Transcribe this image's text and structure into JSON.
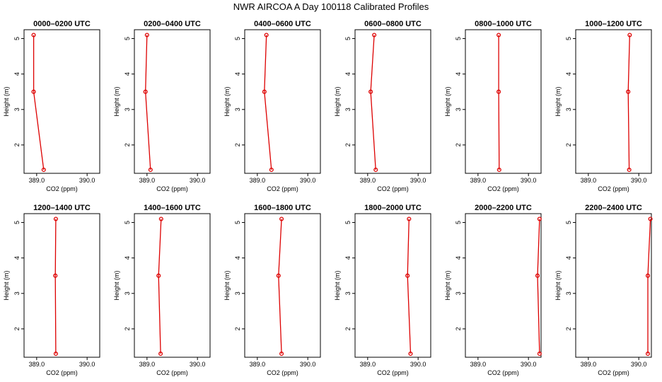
{
  "figure": {
    "title": "NWR AIRCOA A  Day 100118  Calibrated Profiles",
    "line_color": "#dd0000",
    "point_color": "#dd0000"
  },
  "chart_data": [
    {
      "type": "line",
      "title": "0000–0200 UTC",
      "xlabel": "CO2 (ppm)",
      "ylabel": "Height (m)",
      "xlim": [
        388.75,
        390.25
      ],
      "ylim": [
        1.2,
        5.25
      ],
      "xticks": [
        "389.0",
        "390.0"
      ],
      "yticks": [
        "2",
        "3",
        "4",
        "5"
      ],
      "grid": false,
      "series": [
        {
          "x": [
            389.14,
            388.94,
            388.94
          ],
          "y": [
            1.3,
            3.5,
            5.1
          ]
        }
      ]
    },
    {
      "type": "line",
      "title": "0200–0400 UTC",
      "xlabel": "CO2 (ppm)",
      "ylabel": "Height (m)",
      "xlim": [
        388.75,
        390.25
      ],
      "ylim": [
        1.2,
        5.25
      ],
      "xticks": [
        "389.0",
        "390.0"
      ],
      "yticks": [
        "2",
        "3",
        "4",
        "5"
      ],
      "grid": false,
      "series": [
        {
          "x": [
            389.07,
            388.97,
            389.0
          ],
          "y": [
            1.3,
            3.5,
            5.1
          ]
        }
      ]
    },
    {
      "type": "line",
      "title": "0400–0600 UTC",
      "xlabel": "CO2 (ppm)",
      "ylabel": "Height (m)",
      "xlim": [
        388.75,
        390.25
      ],
      "ylim": [
        1.2,
        5.25
      ],
      "xticks": [
        "389.0",
        "390.0"
      ],
      "yticks": [
        "2",
        "3",
        "4",
        "5"
      ],
      "grid": false,
      "series": [
        {
          "x": [
            389.28,
            389.14,
            389.18
          ],
          "y": [
            1.3,
            3.5,
            5.1
          ]
        }
      ]
    },
    {
      "type": "line",
      "title": "0600–0800 UTC",
      "xlabel": "CO2 (ppm)",
      "ylabel": "Height (m)",
      "xlim": [
        388.75,
        390.25
      ],
      "ylim": [
        1.2,
        5.25
      ],
      "xticks": [
        "389.0",
        "390.0"
      ],
      "yticks": [
        "2",
        "3",
        "4",
        "5"
      ],
      "grid": false,
      "series": [
        {
          "x": [
            389.16,
            389.06,
            389.13
          ],
          "y": [
            1.3,
            3.5,
            5.1
          ]
        }
      ]
    },
    {
      "type": "line",
      "title": "0800–1000 UTC",
      "xlabel": "CO2 (ppm)",
      "ylabel": "Height (m)",
      "xlim": [
        388.75,
        390.25
      ],
      "ylim": [
        1.2,
        5.25
      ],
      "xticks": [
        "389.0",
        "390.0"
      ],
      "yticks": [
        "2",
        "3",
        "4",
        "5"
      ],
      "grid": false,
      "series": [
        {
          "x": [
            389.42,
            389.41,
            389.41
          ],
          "y": [
            1.3,
            3.5,
            5.1
          ]
        }
      ]
    },
    {
      "type": "line",
      "title": "1000–1200 UTC",
      "xlabel": "CO2 (ppm)",
      "ylabel": "Height (m)",
      "xlim": [
        388.75,
        390.25
      ],
      "ylim": [
        1.2,
        5.25
      ],
      "xticks": [
        "389.0",
        "390.0"
      ],
      "yticks": [
        "2",
        "3",
        "4",
        "5"
      ],
      "grid": false,
      "series": [
        {
          "x": [
            389.81,
            389.79,
            389.82
          ],
          "y": [
            1.3,
            3.5,
            5.1
          ]
        }
      ]
    },
    {
      "type": "line",
      "title": "1200–1400 UTC",
      "xlabel": "CO2 (ppm)",
      "ylabel": "Height (m)",
      "xlim": [
        388.75,
        390.25
      ],
      "ylim": [
        1.2,
        5.25
      ],
      "xticks": [
        "389.0",
        "390.0"
      ],
      "yticks": [
        "2",
        "3",
        "4",
        "5"
      ],
      "grid": false,
      "series": [
        {
          "x": [
            389.38,
            389.37,
            389.38
          ],
          "y": [
            1.3,
            3.5,
            5.1
          ]
        }
      ]
    },
    {
      "type": "line",
      "title": "1400–1600 UTC",
      "xlabel": "CO2 (ppm)",
      "ylabel": "Height (m)",
      "xlim": [
        388.75,
        390.25
      ],
      "ylim": [
        1.2,
        5.25
      ],
      "xticks": [
        "389.0",
        "390.0"
      ],
      "yticks": [
        "2",
        "3",
        "4",
        "5"
      ],
      "grid": false,
      "series": [
        {
          "x": [
            389.27,
            389.23,
            389.28
          ],
          "y": [
            1.3,
            3.5,
            5.1
          ]
        }
      ]
    },
    {
      "type": "line",
      "title": "1600–1800 UTC",
      "xlabel": "CO2 (ppm)",
      "ylabel": "Height (m)",
      "xlim": [
        388.75,
        390.25
      ],
      "ylim": [
        1.2,
        5.25
      ],
      "xticks": [
        "389.0",
        "390.0"
      ],
      "yticks": [
        "2",
        "3",
        "4",
        "5"
      ],
      "grid": false,
      "series": [
        {
          "x": [
            389.48,
            389.42,
            389.48
          ],
          "y": [
            1.3,
            3.5,
            5.1
          ]
        }
      ]
    },
    {
      "type": "line",
      "title": "1800–2000 UTC",
      "xlabel": "CO2 (ppm)",
      "ylabel": "Height (m)",
      "xlim": [
        388.75,
        390.25
      ],
      "ylim": [
        1.2,
        5.25
      ],
      "xticks": [
        "389.0",
        "390.0"
      ],
      "yticks": [
        "2",
        "3",
        "4",
        "5"
      ],
      "grid": false,
      "series": [
        {
          "x": [
            389.85,
            389.79,
            389.82
          ],
          "y": [
            1.3,
            3.5,
            5.1
          ]
        }
      ]
    },
    {
      "type": "line",
      "title": "2000–2200 UTC",
      "xlabel": "CO2 (ppm)",
      "ylabel": "Height (m)",
      "xlim": [
        388.75,
        390.25
      ],
      "ylim": [
        1.2,
        5.25
      ],
      "xticks": [
        "389.0",
        "390.0"
      ],
      "yticks": [
        "2",
        "3",
        "4",
        "5"
      ],
      "grid": false,
      "series": [
        {
          "x": [
            390.22,
            390.18,
            390.22
          ],
          "y": [
            1.3,
            3.5,
            5.1
          ]
        }
      ]
    },
    {
      "type": "line",
      "title": "2200–2400 UTC",
      "xlabel": "CO2 (ppm)",
      "ylabel": "Height (m)",
      "xlim": [
        388.75,
        390.25
      ],
      "ylim": [
        1.2,
        5.25
      ],
      "xticks": [
        "389.0",
        "390.0"
      ],
      "yticks": [
        "2",
        "3",
        "4",
        "5"
      ],
      "grid": false,
      "series": [
        {
          "x": [
            390.18,
            390.18,
            390.23
          ],
          "y": [
            1.3,
            3.5,
            5.1
          ]
        }
      ]
    }
  ]
}
